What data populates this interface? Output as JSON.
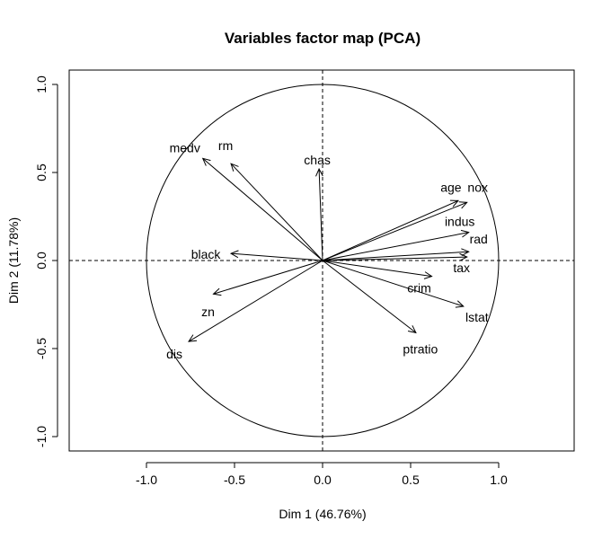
{
  "chart_data": {
    "type": "scatter",
    "title": "Variables factor map (PCA)",
    "xlabel": "Dim 1 (46.76%)",
    "ylabel": "Dim 2 (11.78%)",
    "xlim": [
      -1.0,
      1.0
    ],
    "ylim": [
      -1.0,
      1.0
    ],
    "xticks": [
      "-1.0",
      "-0.5",
      "0.0",
      "0.5",
      "1.0"
    ],
    "yticks": [
      "-1.0",
      "-0.5",
      "0.0",
      "0.5",
      "1.0"
    ],
    "grid": false,
    "unit_circle": true,
    "reference_lines": [
      0,
      0
    ],
    "variables": [
      {
        "name": "medv",
        "x": -0.68,
        "y": 0.58
      },
      {
        "name": "rm",
        "x": -0.52,
        "y": 0.55
      },
      {
        "name": "chas",
        "x": -0.02,
        "y": 0.52
      },
      {
        "name": "age",
        "x": 0.77,
        "y": 0.34
      },
      {
        "name": "nox",
        "x": 0.82,
        "y": 0.33
      },
      {
        "name": "indus",
        "x": 0.83,
        "y": 0.16
      },
      {
        "name": "rad",
        "x": 0.83,
        "y": 0.05
      },
      {
        "name": "tax",
        "x": 0.82,
        "y": 0.02
      },
      {
        "name": "crim",
        "x": 0.62,
        "y": -0.09
      },
      {
        "name": "black",
        "x": -0.52,
        "y": 0.04
      },
      {
        "name": "zn",
        "x": -0.62,
        "y": -0.19
      },
      {
        "name": "lstat",
        "x": 0.8,
        "y": -0.26
      },
      {
        "name": "ptratio",
        "x": 0.53,
        "y": -0.41
      },
      {
        "name": "dis",
        "x": -0.76,
        "y": -0.46
      }
    ]
  }
}
